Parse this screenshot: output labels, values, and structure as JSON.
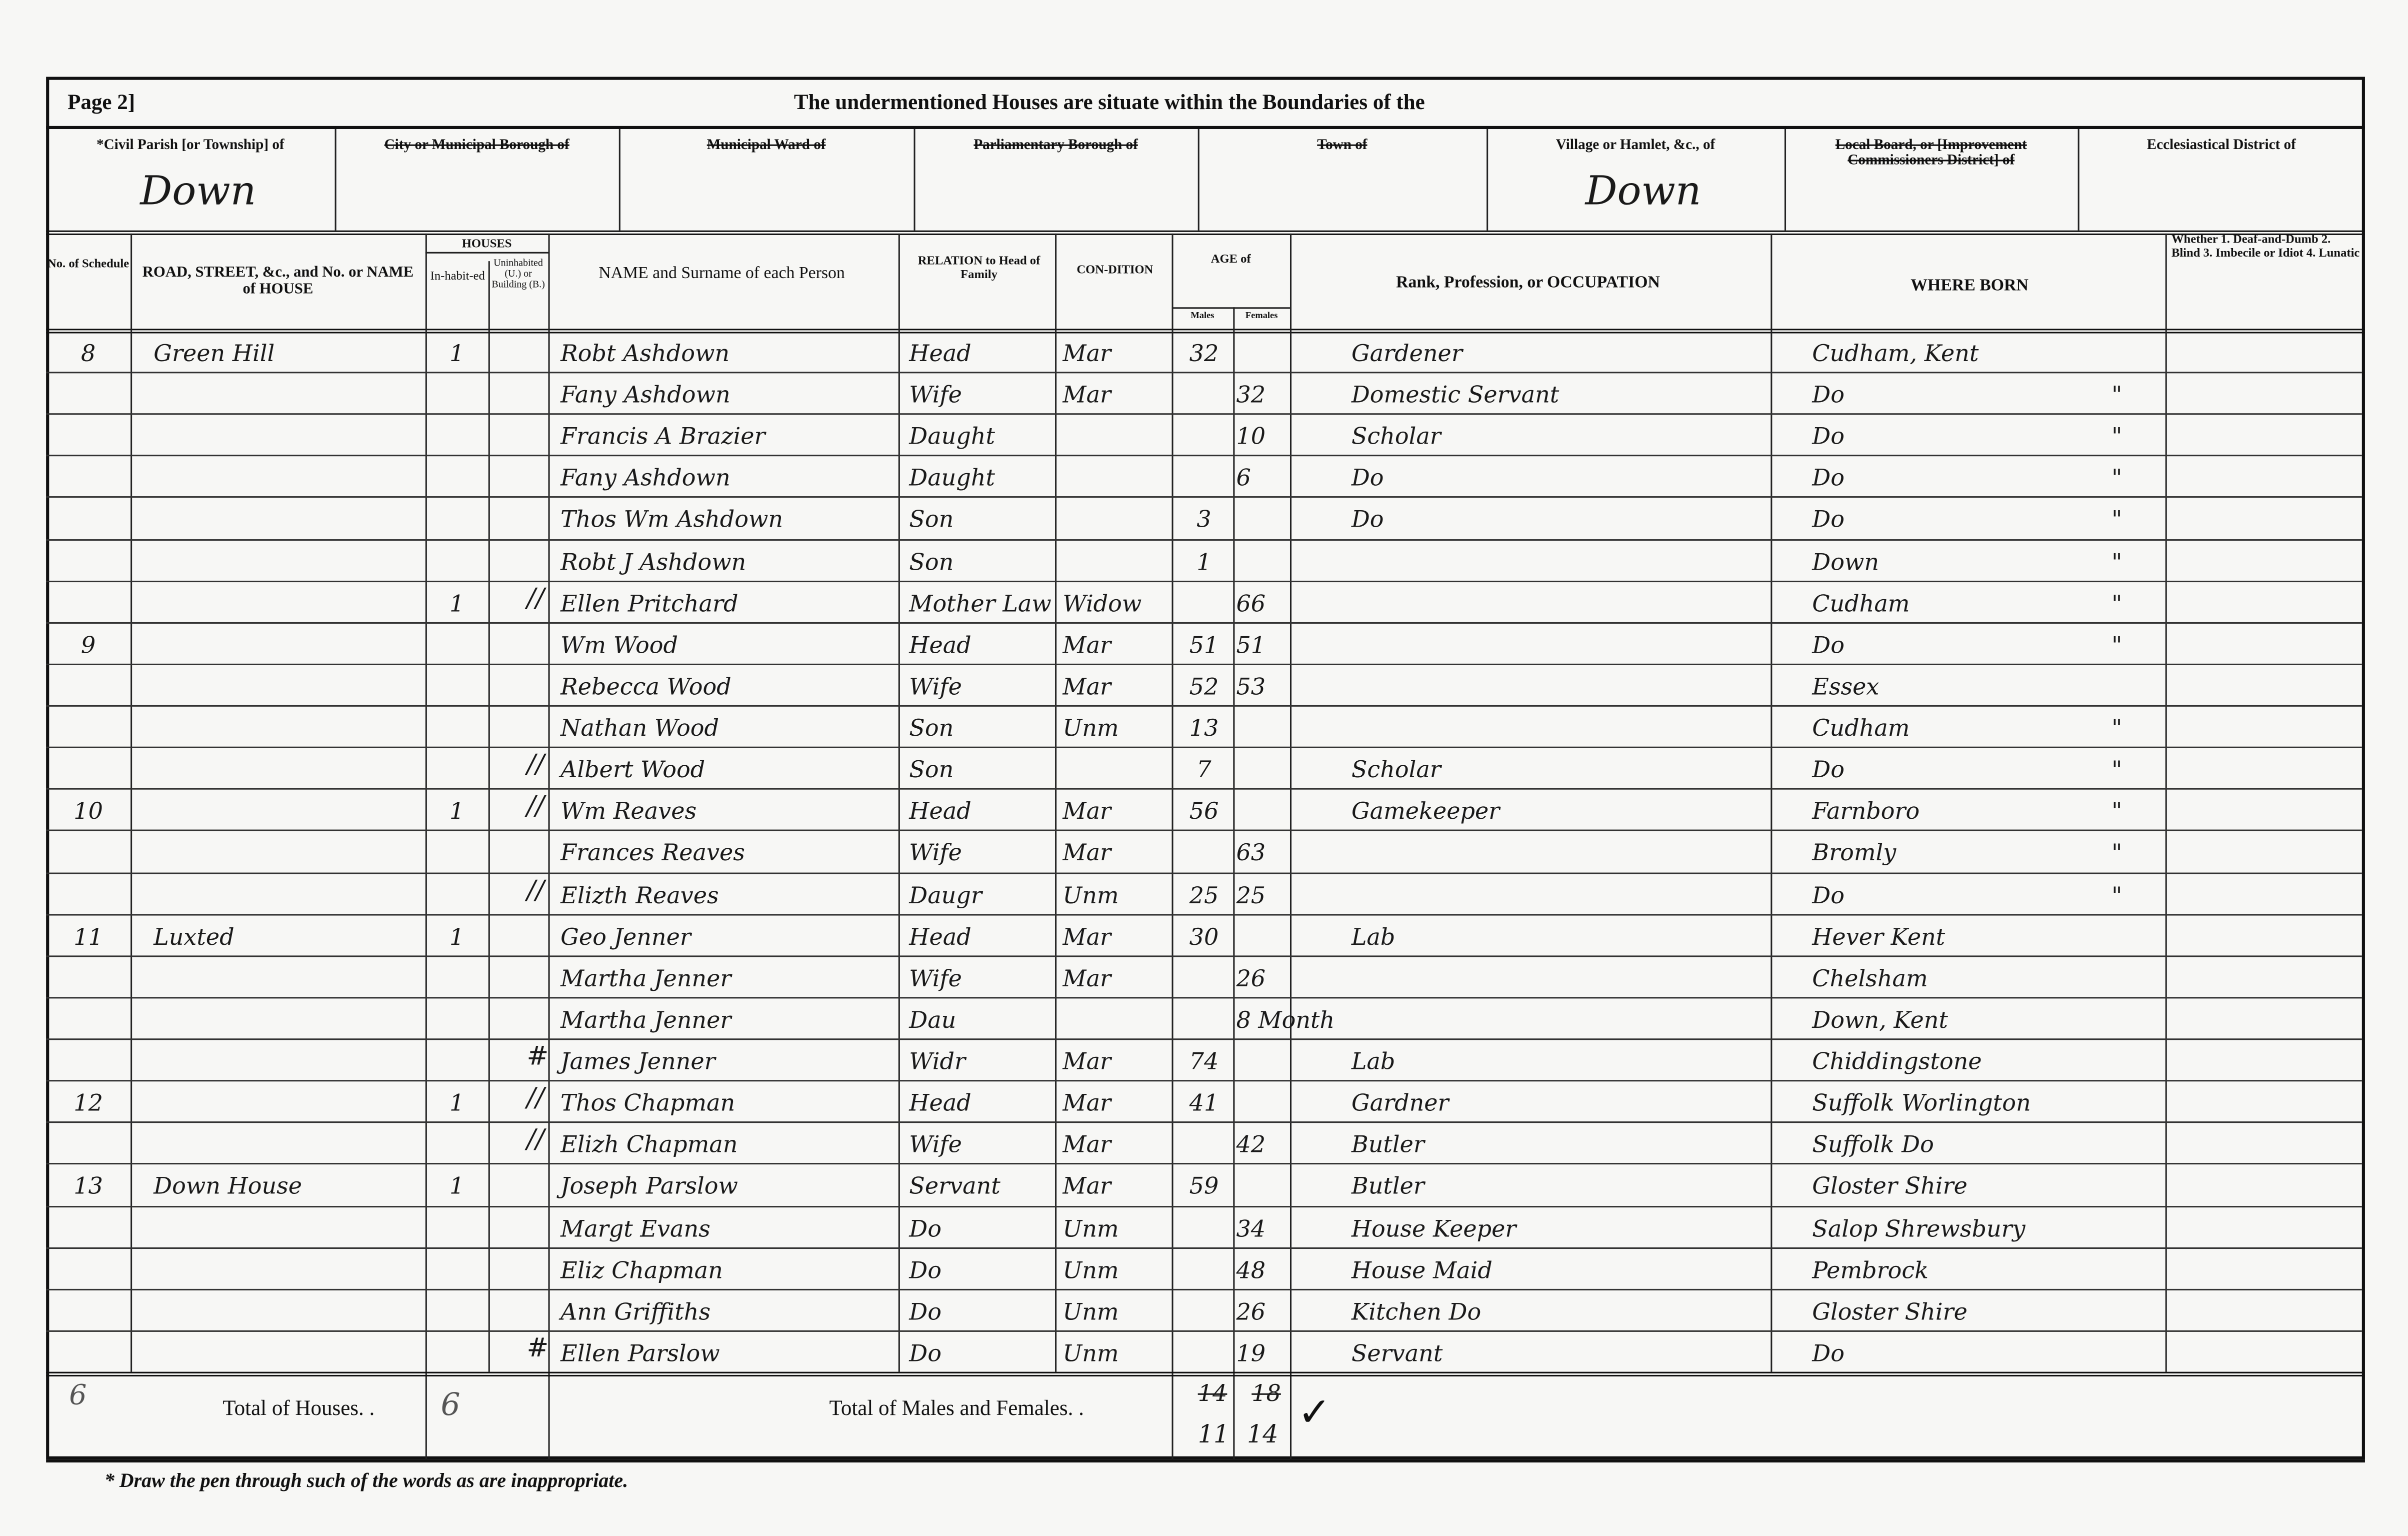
{
  "header": {
    "page_label": "Page 2]",
    "title": "The undermentioned Houses are situate within the Boundaries of the"
  },
  "districts": [
    {
      "label": "*Civil Parish [or Township] of",
      "value": "Down"
    },
    {
      "label": "City or Municipal Borough of",
      "value": "",
      "struck": true
    },
    {
      "label": "Municipal Ward of",
      "value": "",
      "struck": true
    },
    {
      "label": "Parliamentary Borough of",
      "value": "",
      "struck": true
    },
    {
      "label": "Town of",
      "value": "",
      "struck": true
    },
    {
      "label": "Village or Hamlet, &c., of",
      "value": "Down"
    },
    {
      "label": "Local Board, or [Improvement Commissioners District] of",
      "value": "",
      "struck": true
    },
    {
      "label": "Ecclesiastical District of",
      "value": ""
    }
  ],
  "columns": {
    "schedule": "No. of Schedule",
    "road": "ROAD, STREET, &c., and No. or NAME of HOUSE",
    "houses": "HOUSES",
    "inhabited": "In-habit-ed",
    "uninhabited": "Uninhabited (U.) or Building (B.)",
    "name": "NAME and Surname of each Person",
    "relation": "RELATION to Head of Family",
    "condition": "CON-DITION",
    "age": "AGE of",
    "males": "Males",
    "females": "Females",
    "occupation": "Rank, Profession, or OCCUPATION",
    "born": "WHERE BORN",
    "infirmity": "Whether 1. Deaf-and-Dumb 2. Blind 3. Imbecile or Idiot 4. Lunatic"
  },
  "rows": [
    {
      "schedule": "8",
      "road": "Green Hill",
      "inhabited": "1",
      "mark": "",
      "name": "Robt Ashdown",
      "relation": "Head",
      "condition": "Mar",
      "male": "32",
      "female": "",
      "occupation": "Gardener",
      "born": "Cudham, Kent",
      "ditto": ""
    },
    {
      "schedule": "",
      "road": "",
      "inhabited": "",
      "mark": "",
      "name": "Fany Ashdown",
      "relation": "Wife",
      "condition": "Mar",
      "male": "",
      "female": "32",
      "occupation": "Domestic Servant",
      "born": "Do",
      "ditto": "\""
    },
    {
      "schedule": "",
      "road": "",
      "inhabited": "",
      "mark": "",
      "name": "Francis A Brazier",
      "relation": "Daught",
      "condition": "",
      "male": "",
      "female": "10",
      "occupation": "Scholar",
      "born": "Do",
      "ditto": "\""
    },
    {
      "schedule": "",
      "road": "",
      "inhabited": "",
      "mark": "",
      "name": "Fany Ashdown",
      "relation": "Daught",
      "condition": "",
      "male": "",
      "female": "6",
      "occupation": "Do",
      "born": "Do",
      "ditto": "\""
    },
    {
      "schedule": "",
      "road": "",
      "inhabited": "",
      "mark": "",
      "name": "Thos Wm Ashdown",
      "relation": "Son",
      "condition": "",
      "male": "3",
      "female": "",
      "occupation": "Do",
      "born": "Do",
      "ditto": "\""
    },
    {
      "schedule": "",
      "road": "",
      "inhabited": "",
      "mark": "",
      "name": "Robt J Ashdown",
      "relation": "Son",
      "condition": "",
      "male": "1",
      "female": "",
      "occupation": "",
      "born": "Down",
      "ditto": "\""
    },
    {
      "schedule": "",
      "road": "",
      "inhabited": "1",
      "mark": "//",
      "name": "Ellen Pritchard",
      "relation": "Mother Law",
      "condition": "Widow",
      "male": "",
      "female": "66",
      "occupation": "",
      "born": "Cudham",
      "ditto": "\""
    },
    {
      "schedule": "9",
      "road": "",
      "inhabited": "",
      "mark": "",
      "name": "Wm Wood",
      "relation": "Head",
      "condition": "Mar",
      "male": "51",
      "female": "51",
      "occupation": "",
      "born": "Do",
      "ditto": "\""
    },
    {
      "schedule": "",
      "road": "",
      "inhabited": "",
      "mark": "",
      "name": "Rebecca Wood",
      "relation": "Wife",
      "condition": "Mar",
      "male": "52",
      "female": "53",
      "occupation": "",
      "born": "Essex",
      "ditto": ""
    },
    {
      "schedule": "",
      "road": "",
      "inhabited": "",
      "mark": "",
      "name": "Nathan Wood",
      "relation": "Son",
      "condition": "Unm",
      "male": "13",
      "female": "",
      "occupation": "",
      "born": "Cudham",
      "ditto": "\""
    },
    {
      "schedule": "",
      "road": "",
      "inhabited": "",
      "mark": "//",
      "name": "Albert Wood",
      "relation": "Son",
      "condition": "",
      "male": "7",
      "female": "",
      "occupation": "Scholar",
      "born": "Do",
      "ditto": "\""
    },
    {
      "schedule": "10",
      "road": "",
      "inhabited": "1",
      "mark": "//",
      "name": "Wm Reaves",
      "relation": "Head",
      "condition": "Mar",
      "male": "56",
      "female": "",
      "occupation": "Gamekeeper",
      "born": "Farnboro",
      "ditto": "\""
    },
    {
      "schedule": "",
      "road": "",
      "inhabited": "",
      "mark": "",
      "name": "Frances Reaves",
      "relation": "Wife",
      "condition": "Mar",
      "male": "",
      "female": "63",
      "occupation": "",
      "born": "Bromly",
      "ditto": "\""
    },
    {
      "schedule": "",
      "road": "",
      "inhabited": "",
      "mark": "//",
      "name": "Elizth Reaves",
      "relation": "Daugr",
      "condition": "Unm",
      "male": "25",
      "female": "25",
      "occupation": "",
      "born": "Do",
      "ditto": "\""
    },
    {
      "schedule": "11",
      "road": "Luxted",
      "inhabited": "1",
      "mark": "",
      "name": "Geo Jenner",
      "relation": "Head",
      "condition": "Mar",
      "male": "30",
      "female": "",
      "occupation": "Lab",
      "born": "Hever Kent",
      "ditto": ""
    },
    {
      "schedule": "",
      "road": "",
      "inhabited": "",
      "mark": "",
      "name": "Martha Jenner",
      "relation": "Wife",
      "condition": "Mar",
      "male": "",
      "female": "26",
      "occupation": "",
      "born": "Chelsham",
      "ditto": ""
    },
    {
      "schedule": "",
      "road": "",
      "inhabited": "",
      "mark": "",
      "name": "Martha Jenner",
      "relation": "Dau",
      "condition": "",
      "male": "",
      "female": "8 Month",
      "occupation": "",
      "born": "Down, Kent",
      "ditto": ""
    },
    {
      "schedule": "",
      "road": "",
      "inhabited": "",
      "mark": "#",
      "name": "James Jenner",
      "relation": "Widr",
      "condition": "Mar",
      "male": "74",
      "female": "",
      "occupation": "Lab",
      "born": "Chiddingstone",
      "ditto": ""
    },
    {
      "schedule": "12",
      "road": "",
      "inhabited": "1",
      "mark": "//",
      "name": "Thos Chapman",
      "relation": "Head",
      "condition": "Mar",
      "male": "41",
      "female": "",
      "occupation": "Gardner",
      "born": "Suffolk Worlington",
      "ditto": ""
    },
    {
      "schedule": "",
      "road": "",
      "inhabited": "",
      "mark": "//",
      "name": "Elizh Chapman",
      "relation": "Wife",
      "condition": "Mar",
      "male": "",
      "female": "42",
      "occupation": "Butler",
      "born": "Suffolk Do",
      "ditto": ""
    },
    {
      "schedule": "13",
      "road": "Down House",
      "inhabited": "1",
      "mark": "",
      "name": "Joseph Parslow",
      "relation": "Servant",
      "condition": "Mar",
      "male": "59",
      "female": "",
      "occupation": "Butler",
      "born": "Gloster Shire",
      "ditto": ""
    },
    {
      "schedule": "",
      "road": "",
      "inhabited": "",
      "mark": "",
      "name": "Margt Evans",
      "relation": "Do",
      "condition": "Unm",
      "male": "",
      "female": "34",
      "occupation": "House Keeper",
      "born": "Salop Shrewsbury",
      "ditto": ""
    },
    {
      "schedule": "",
      "road": "",
      "inhabited": "",
      "mark": "",
      "name": "Eliz Chapman",
      "relation": "Do",
      "condition": "Unm",
      "male": "",
      "female": "48",
      "occupation": "House Maid",
      "born": "Pembrock",
      "ditto": ""
    },
    {
      "schedule": "",
      "road": "",
      "inhabited": "",
      "mark": "",
      "name": "Ann Griffiths",
      "relation": "Do",
      "condition": "Unm",
      "male": "",
      "female": "26",
      "occupation": "Kitchen Do",
      "born": "Gloster Shire",
      "ditto": ""
    },
    {
      "schedule": "",
      "road": "",
      "inhabited": "",
      "mark": "#",
      "name": "Ellen Parslow",
      "relation": "Do",
      "condition": "Unm",
      "male": "",
      "female": "19",
      "occupation": "Servant",
      "born": "Do",
      "ditto": ""
    }
  ],
  "totals": {
    "schedules": "6",
    "houses_label": "Total of Houses. .",
    "houses": "6",
    "persons_label": "Total of Males and Females. .",
    "males_struck": "14",
    "females_struck": "18",
    "males": "11",
    "females": "14",
    "check": "✓"
  },
  "footnote": "* Draw the pen through such of the words as are inappropriate."
}
